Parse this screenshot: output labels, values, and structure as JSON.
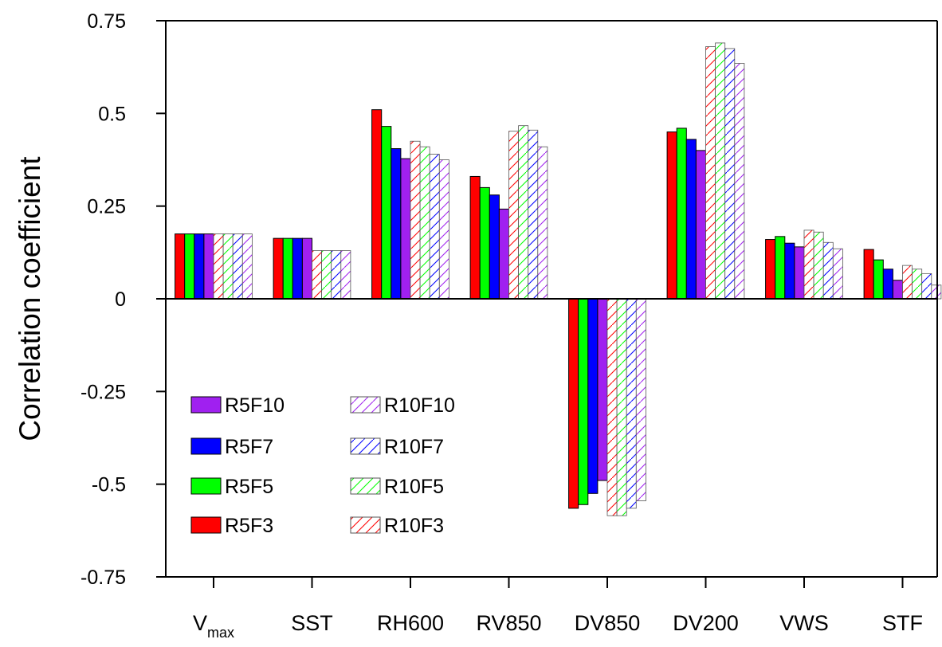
{
  "chart_data": {
    "type": "bar",
    "title": "",
    "xlabel": "",
    "ylabel": "Correlation coefficient",
    "ylim": [
      -0.75,
      0.75
    ],
    "yticks": [
      {
        "value": 0.75,
        "label": "0.75"
      },
      {
        "value": 0.5,
        "label": "0.5"
      },
      {
        "value": 0.25,
        "label": "0.25"
      },
      {
        "value": 0,
        "label": "0"
      },
      {
        "value": -0.25,
        "label": "-0.25"
      },
      {
        "value": -0.5,
        "label": "-0.5"
      },
      {
        "value": -0.75,
        "label": "-0.75"
      }
    ],
    "categories": [
      {
        "main": "V",
        "sub": "max"
      },
      {
        "main": "SST",
        "sub": ""
      },
      {
        "main": "RH600",
        "sub": ""
      },
      {
        "main": "RV850",
        "sub": ""
      },
      {
        "main": "DV850",
        "sub": ""
      },
      {
        "main": "DV200",
        "sub": ""
      },
      {
        "main": "VWS",
        "sub": ""
      },
      {
        "main": "STF",
        "sub": ""
      }
    ],
    "grid": false,
    "legend_position": "lower-left",
    "series": [
      {
        "name": "R5F3",
        "color": "#ff0000",
        "style": "solid",
        "values": [
          0.175,
          0.163,
          0.51,
          0.33,
          -0.565,
          0.45,
          0.16,
          0.133
        ]
      },
      {
        "name": "R5F5",
        "color": "#00ff00",
        "style": "solid",
        "values": [
          0.175,
          0.163,
          0.465,
          0.3,
          -0.555,
          0.46,
          0.168,
          0.105
        ]
      },
      {
        "name": "R5F7",
        "color": "#0000ff",
        "style": "solid",
        "values": [
          0.175,
          0.163,
          0.405,
          0.28,
          -0.525,
          0.43,
          0.15,
          0.08
        ]
      },
      {
        "name": "R5F10",
        "color": "#a020f0",
        "style": "solid",
        "values": [
          0.175,
          0.163,
          0.378,
          0.242,
          -0.49,
          0.4,
          0.14,
          0.05
        ]
      },
      {
        "name": "R10F3",
        "color": "#ff0000",
        "style": "hatch",
        "values": [
          0.175,
          0.13,
          0.425,
          0.452,
          -0.585,
          0.68,
          0.185,
          0.09
        ]
      },
      {
        "name": "R10F5",
        "color": "#00ff00",
        "style": "hatch",
        "values": [
          0.175,
          0.13,
          0.41,
          0.467,
          -0.585,
          0.69,
          0.18,
          0.08
        ]
      },
      {
        "name": "R10F7",
        "color": "#0000ff",
        "style": "hatch",
        "values": [
          0.175,
          0.13,
          0.39,
          0.455,
          -0.565,
          0.675,
          0.152,
          0.068
        ]
      },
      {
        "name": "R10F10",
        "color": "#a020f0",
        "style": "hatch",
        "values": [
          0.175,
          0.13,
          0.375,
          0.41,
          -0.545,
          0.635,
          0.135,
          0.037
        ]
      }
    ],
    "legend_columns": [
      [
        "R5F10",
        "R5F7",
        "R5F5",
        "R5F3"
      ],
      [
        "R10F10",
        "R10F7",
        "R10F5",
        "R10F3"
      ]
    ]
  }
}
